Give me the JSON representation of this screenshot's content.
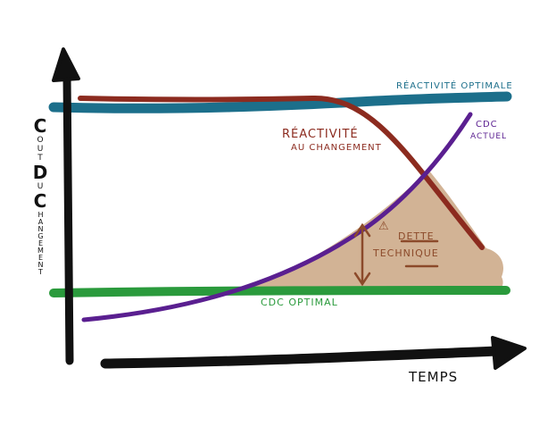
{
  "colors": {
    "optimal_reactivity": "#1c6f8b",
    "reactivity": "#8c2b1f",
    "current_cost": "#5a1f90",
    "optimal_cost": "#2a9a3c",
    "debt_area": "#d2b395",
    "axis": "#111111"
  },
  "y_axis": {
    "label_parts": [
      {
        "big": "C",
        "rest": "OUT"
      },
      {
        "big": "D",
        "rest": "U"
      },
      {
        "big": "C",
        "rest": "HANGEMENT"
      }
    ],
    "label": "Coût du changement"
  },
  "x_axis": {
    "label": "Temps"
  },
  "labels": {
    "optimal_reactivity": "Réactivité optimale",
    "reactivity_line1": "Réactivité",
    "reactivity_line2": "au changement",
    "current_cost_line1": "CDC",
    "current_cost_line2": "actuel",
    "optimal_cost": "CDC optimal",
    "debt_warning": "⚠",
    "debt_line1": "Dette",
    "debt_line2": "technique"
  }
}
